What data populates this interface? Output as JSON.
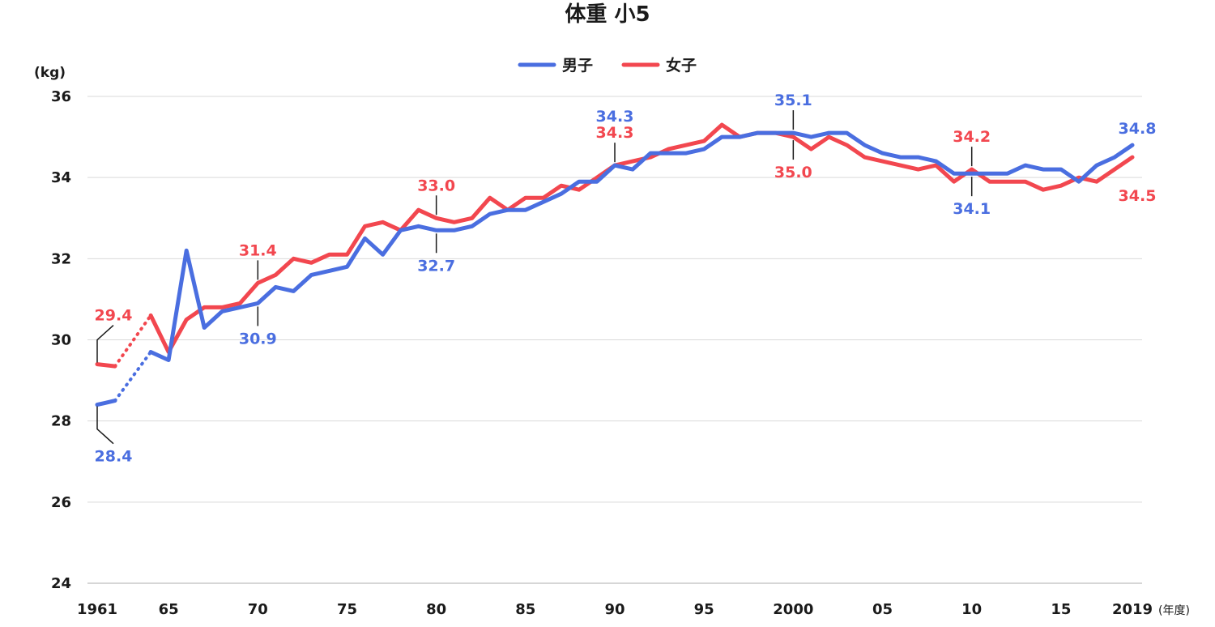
{
  "chart_data": {
    "type": "line",
    "title": "体重 小5",
    "y_unit_label": "(kg)",
    "x_unit_label": "(年度)",
    "ylim": [
      24,
      36
    ],
    "yticks": [
      24,
      26,
      28,
      30,
      32,
      34,
      36
    ],
    "yticks_labels": [
      "24",
      "26",
      "28",
      "30",
      "32",
      "34",
      "36"
    ],
    "xlim": [
      1961,
      2019
    ],
    "xticks": [
      1961,
      1965,
      1970,
      1975,
      1980,
      1985,
      1990,
      1995,
      2000,
      2005,
      2010,
      2015,
      2019
    ],
    "xticks_labels": [
      "1961",
      "65",
      "70",
      "75",
      "80",
      "85",
      "90",
      "95",
      "2000",
      "05",
      "10",
      "15",
      "2019"
    ],
    "grid": true,
    "legend": {
      "position": "top-center",
      "entries": [
        "男子",
        "女子"
      ]
    },
    "dotted_range": [
      1962,
      1964
    ],
    "series": [
      {
        "name": "男子",
        "color": "#4a6ee0",
        "points": [
          [
            1961,
            28.4
          ],
          [
            1962,
            28.5
          ],
          [
            1964,
            29.7
          ],
          [
            1965,
            29.5
          ],
          [
            1966,
            32.2
          ],
          [
            1967,
            30.3
          ],
          [
            1968,
            30.7
          ],
          [
            1969,
            30.8
          ],
          [
            1970,
            30.9
          ],
          [
            1971,
            31.3
          ],
          [
            1972,
            31.2
          ],
          [
            1973,
            31.6
          ],
          [
            1974,
            31.7
          ],
          [
            1975,
            31.8
          ],
          [
            1976,
            32.5
          ],
          [
            1977,
            32.1
          ],
          [
            1978,
            32.7
          ],
          [
            1979,
            32.8
          ],
          [
            1980,
            32.7
          ],
          [
            1981,
            32.7
          ],
          [
            1982,
            32.8
          ],
          [
            1983,
            33.1
          ],
          [
            1984,
            33.2
          ],
          [
            1985,
            33.2
          ],
          [
            1986,
            33.4
          ],
          [
            1987,
            33.6
          ],
          [
            1988,
            33.9
          ],
          [
            1989,
            33.9
          ],
          [
            1990,
            34.3
          ],
          [
            1991,
            34.2
          ],
          [
            1992,
            34.6
          ],
          [
            1993,
            34.6
          ],
          [
            1994,
            34.6
          ],
          [
            1995,
            34.7
          ],
          [
            1996,
            35.0
          ],
          [
            1997,
            35.0
          ],
          [
            1998,
            35.1
          ],
          [
            1999,
            35.1
          ],
          [
            2000,
            35.1
          ],
          [
            2001,
            35.0
          ],
          [
            2002,
            35.1
          ],
          [
            2003,
            35.1
          ],
          [
            2004,
            34.8
          ],
          [
            2005,
            34.6
          ],
          [
            2006,
            34.5
          ],
          [
            2007,
            34.5
          ],
          [
            2008,
            34.4
          ],
          [
            2009,
            34.1
          ],
          [
            2010,
            34.1
          ],
          [
            2011,
            34.1
          ],
          [
            2012,
            34.1
          ],
          [
            2013,
            34.3
          ],
          [
            2014,
            34.2
          ],
          [
            2015,
            34.2
          ],
          [
            2016,
            33.9
          ],
          [
            2017,
            34.3
          ],
          [
            2018,
            34.5
          ],
          [
            2019,
            34.8
          ]
        ]
      },
      {
        "name": "女子",
        "color": "#f2474f",
        "points": [
          [
            1961,
            29.4
          ],
          [
            1962,
            29.35
          ],
          [
            1964,
            30.6
          ],
          [
            1965,
            29.7
          ],
          [
            1966,
            30.5
          ],
          [
            1967,
            30.8
          ],
          [
            1968,
            30.8
          ],
          [
            1969,
            30.9
          ],
          [
            1970,
            31.4
          ],
          [
            1971,
            31.6
          ],
          [
            1972,
            32.0
          ],
          [
            1973,
            31.9
          ],
          [
            1974,
            32.1
          ],
          [
            1975,
            32.1
          ],
          [
            1976,
            32.8
          ],
          [
            1977,
            32.9
          ],
          [
            1978,
            32.7
          ],
          [
            1979,
            33.2
          ],
          [
            1980,
            33.0
          ],
          [
            1981,
            32.9
          ],
          [
            1982,
            33.0
          ],
          [
            1983,
            33.5
          ],
          [
            1984,
            33.2
          ],
          [
            1985,
            33.5
          ],
          [
            1986,
            33.5
          ],
          [
            1987,
            33.8
          ],
          [
            1988,
            33.7
          ],
          [
            1989,
            34.0
          ],
          [
            1990,
            34.3
          ],
          [
            1991,
            34.4
          ],
          [
            1992,
            34.5
          ],
          [
            1993,
            34.7
          ],
          [
            1994,
            34.8
          ],
          [
            1995,
            34.9
          ],
          [
            1996,
            35.3
          ],
          [
            1997,
            35.0
          ],
          [
            1998,
            35.1
          ],
          [
            1999,
            35.1
          ],
          [
            2000,
            35.0
          ],
          [
            2001,
            34.7
          ],
          [
            2002,
            35.0
          ],
          [
            2003,
            34.8
          ],
          [
            2004,
            34.5
          ],
          [
            2005,
            34.4
          ],
          [
            2006,
            34.3
          ],
          [
            2007,
            34.2
          ],
          [
            2008,
            34.3
          ],
          [
            2009,
            33.9
          ],
          [
            2010,
            34.2
          ],
          [
            2011,
            33.9
          ],
          [
            2012,
            33.9
          ],
          [
            2013,
            33.9
          ],
          [
            2014,
            33.7
          ],
          [
            2015,
            33.8
          ],
          [
            2016,
            34.0
          ],
          [
            2017,
            33.9
          ],
          [
            2018,
            34.2
          ],
          [
            2019,
            34.5
          ]
        ]
      }
    ],
    "annotations": [
      {
        "series": "女子",
        "x": 1961,
        "y": 29.4,
        "text": "29.4",
        "pos": "above"
      },
      {
        "series": "男子",
        "x": 1961,
        "y": 28.4,
        "text": "28.4",
        "pos": "below"
      },
      {
        "series": "女子",
        "x": 1970,
        "y": 31.4,
        "text": "31.4",
        "pos": "above"
      },
      {
        "series": "男子",
        "x": 1970,
        "y": 30.9,
        "text": "30.9",
        "pos": "below"
      },
      {
        "series": "女子",
        "x": 1980,
        "y": 33.0,
        "text": "33.0",
        "pos": "above"
      },
      {
        "series": "男子",
        "x": 1980,
        "y": 32.7,
        "text": "32.7",
        "pos": "below"
      },
      {
        "series": "男子",
        "x": 1990,
        "y": 34.3,
        "text": "34.3",
        "pos": "above-top"
      },
      {
        "series": "女子",
        "x": 1990,
        "y": 34.3,
        "text": "34.3",
        "pos": "above"
      },
      {
        "series": "男子",
        "x": 2000,
        "y": 35.1,
        "text": "35.1",
        "pos": "above"
      },
      {
        "series": "女子",
        "x": 2000,
        "y": 35.0,
        "text": "35.0",
        "pos": "below"
      },
      {
        "series": "女子",
        "x": 2010,
        "y": 34.2,
        "text": "34.2",
        "pos": "above"
      },
      {
        "series": "男子",
        "x": 2010,
        "y": 34.1,
        "text": "34.1",
        "pos": "below"
      },
      {
        "series": "男子",
        "x": 2019,
        "y": 34.8,
        "text": "34.8",
        "pos": "end-above"
      },
      {
        "series": "女子",
        "x": 2019,
        "y": 34.5,
        "text": "34.5",
        "pos": "end-below"
      }
    ]
  }
}
